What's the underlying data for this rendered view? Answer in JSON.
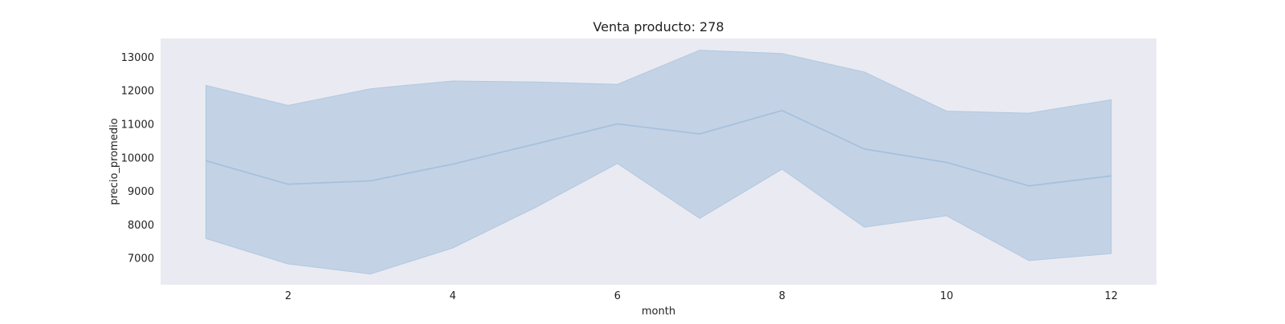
{
  "chart_data": {
    "type": "line",
    "title": "Venta producto: 278",
    "xlabel": "month",
    "ylabel": "precio_promedio",
    "xlim": [
      0.45,
      12.55
    ],
    "ylim": [
      6200,
      13550
    ],
    "xticks": [
      2,
      4,
      6,
      8,
      10,
      12
    ],
    "yticks": [
      7000,
      8000,
      9000,
      10000,
      11000,
      12000,
      13000
    ],
    "grid": false,
    "x": [
      1,
      2,
      3,
      4,
      5,
      6,
      7,
      8,
      9,
      10,
      11,
      12
    ],
    "series": [
      {
        "values": [
          9900,
          9200,
          9300,
          9800,
          10400,
          11000,
          10700,
          11400,
          10250,
          9850,
          9150,
          9450
        ],
        "band_upper": [
          12150,
          11550,
          12050,
          12280,
          12250,
          12180,
          13200,
          13100,
          12550,
          11380,
          11320,
          11720
        ],
        "band_lower": [
          7580,
          6820,
          6520,
          7300,
          8500,
          9820,
          8180,
          9650,
          7920,
          8260,
          6920,
          7130
        ]
      }
    ],
    "colors": {
      "plot_background": "#eaeaf2",
      "line": "#a6c1dd",
      "band_fill": "#c3d3e5",
      "band_edge": "#b0c8e0"
    }
  }
}
